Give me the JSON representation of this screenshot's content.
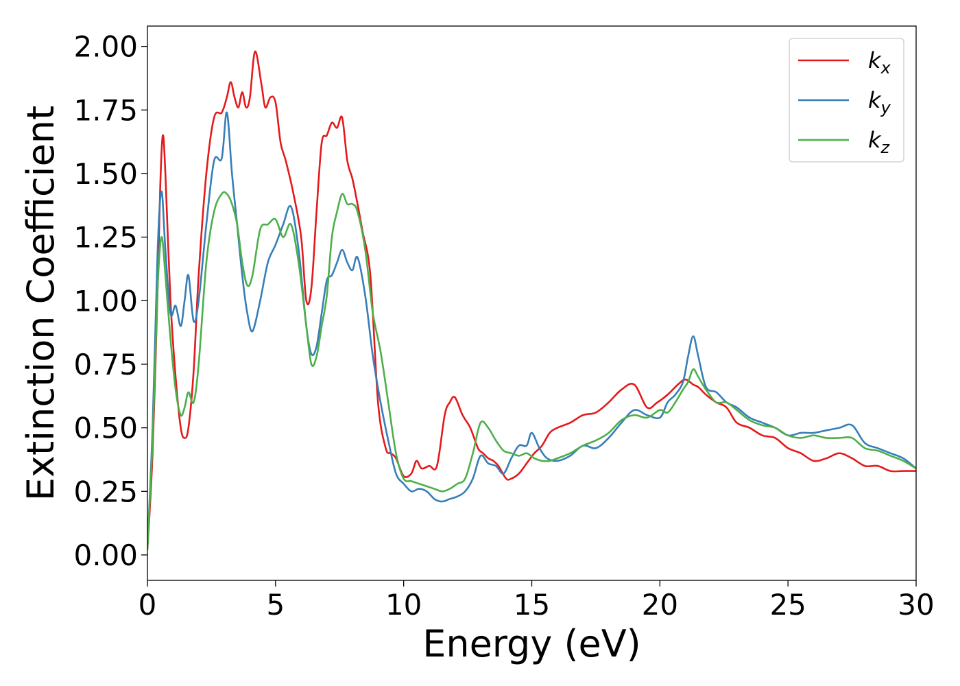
{
  "chart_data": {
    "type": "line",
    "xlabel": "Energy (eV)",
    "ylabel": "Extinction Coefficient",
    "xlim": [
      0,
      30
    ],
    "ylim": [
      -0.1,
      2.08
    ],
    "xticks": [
      "0",
      "5",
      "10",
      "15",
      "20",
      "25",
      "30"
    ],
    "yticks": [
      "0.00",
      "0.25",
      "0.50",
      "0.75",
      "1.00",
      "1.25",
      "1.50",
      "1.75",
      "2.00"
    ],
    "grid": false,
    "legend_position": "top-right",
    "series": [
      {
        "name": "k",
        "subscript": "x",
        "color": "#e41a1c",
        "x": [
          0,
          0.2,
          0.4,
          0.5,
          0.6,
          0.7,
          0.9,
          1.1,
          1.3,
          1.45,
          1.6,
          1.8,
          2.0,
          2.3,
          2.6,
          2.9,
          3.1,
          3.25,
          3.4,
          3.55,
          3.7,
          3.85,
          4.0,
          4.2,
          4.45,
          4.6,
          4.8,
          5.0,
          5.2,
          5.4,
          5.7,
          6.0,
          6.2,
          6.4,
          6.6,
          6.8,
          7.0,
          7.2,
          7.4,
          7.6,
          7.8,
          8.0,
          8.2,
          8.4,
          8.7,
          9.0,
          9.3,
          9.5,
          9.7,
          10.0,
          10.3,
          10.5,
          10.7,
          11.0,
          11.3,
          11.6,
          11.8,
          12.0,
          12.3,
          12.6,
          12.9,
          13.1,
          13.3,
          13.5,
          13.7,
          14.0,
          14.2,
          14.5,
          14.8,
          15.1,
          15.4,
          15.7,
          16.0,
          16.5,
          17.0,
          17.5,
          18.0,
          18.5,
          19.0,
          19.5,
          19.9,
          20.3,
          20.7,
          21.0,
          21.3,
          21.5,
          21.8,
          22.2,
          22.6,
          23.0,
          23.5,
          24.0,
          24.5,
          25.0,
          25.5,
          26.0,
          26.5,
          27.0,
          27.5,
          28.0,
          28.5,
          29.0,
          29.5,
          30.0
        ],
        "values": [
          0.02,
          0.4,
          1.05,
          1.45,
          1.65,
          1.5,
          1.0,
          0.7,
          0.5,
          0.46,
          0.5,
          0.72,
          1.1,
          1.5,
          1.72,
          1.74,
          1.8,
          1.86,
          1.8,
          1.76,
          1.82,
          1.76,
          1.8,
          1.98,
          1.85,
          1.76,
          1.8,
          1.78,
          1.62,
          1.55,
          1.42,
          1.25,
          1.0,
          1.05,
          1.35,
          1.62,
          1.65,
          1.7,
          1.68,
          1.72,
          1.55,
          1.48,
          1.38,
          1.27,
          1.1,
          0.6,
          0.42,
          0.4,
          0.38,
          0.31,
          0.32,
          0.37,
          0.34,
          0.35,
          0.35,
          0.55,
          0.6,
          0.62,
          0.55,
          0.5,
          0.42,
          0.4,
          0.38,
          0.37,
          0.35,
          0.3,
          0.3,
          0.32,
          0.36,
          0.4,
          0.43,
          0.48,
          0.5,
          0.52,
          0.55,
          0.56,
          0.6,
          0.65,
          0.67,
          0.58,
          0.6,
          0.63,
          0.67,
          0.69,
          0.67,
          0.66,
          0.63,
          0.6,
          0.58,
          0.52,
          0.5,
          0.47,
          0.46,
          0.42,
          0.4,
          0.37,
          0.38,
          0.4,
          0.38,
          0.35,
          0.35,
          0.33,
          0.33,
          0.33
        ]
      },
      {
        "name": "k",
        "subscript": "y",
        "color": "#377eb8",
        "x": [
          0,
          0.2,
          0.4,
          0.55,
          0.7,
          0.9,
          1.1,
          1.3,
          1.45,
          1.6,
          1.8,
          2.0,
          2.3,
          2.6,
          2.9,
          3.1,
          3.3,
          3.5,
          3.7,
          3.9,
          4.1,
          4.4,
          4.7,
          5.0,
          5.3,
          5.6,
          5.9,
          6.2,
          6.4,
          6.6,
          6.8,
          7.0,
          7.2,
          7.4,
          7.6,
          7.8,
          8.0,
          8.2,
          8.5,
          8.8,
          9.1,
          9.4,
          9.7,
          10.0,
          10.3,
          10.6,
          10.9,
          11.2,
          11.5,
          11.8,
          12.1,
          12.4,
          12.7,
          13.0,
          13.3,
          13.6,
          13.9,
          14.2,
          14.5,
          14.8,
          15.0,
          15.3,
          15.6,
          16.0,
          16.5,
          17.0,
          17.5,
          18.0,
          18.5,
          19.0,
          19.5,
          20.0,
          20.3,
          20.6,
          20.9,
          21.1,
          21.3,
          21.5,
          21.8,
          22.2,
          22.6,
          23.0,
          23.5,
          24.0,
          24.5,
          25.0,
          25.5,
          26.0,
          26.5,
          27.0,
          27.5,
          28.0,
          28.5,
          29.0,
          29.5,
          30.0
        ],
        "values": [
          0.03,
          0.5,
          1.2,
          1.43,
          1.2,
          0.95,
          0.98,
          0.9,
          1.0,
          1.1,
          0.92,
          1.0,
          1.3,
          1.55,
          1.56,
          1.74,
          1.5,
          1.3,
          1.1,
          0.95,
          0.88,
          1.0,
          1.15,
          1.22,
          1.3,
          1.37,
          1.2,
          0.9,
          0.79,
          0.82,
          0.95,
          1.08,
          1.1,
          1.15,
          1.2,
          1.15,
          1.12,
          1.17,
          1.02,
          0.78,
          0.6,
          0.45,
          0.32,
          0.28,
          0.25,
          0.26,
          0.25,
          0.22,
          0.21,
          0.22,
          0.23,
          0.25,
          0.3,
          0.39,
          0.36,
          0.35,
          0.32,
          0.38,
          0.43,
          0.43,
          0.48,
          0.42,
          0.38,
          0.37,
          0.39,
          0.43,
          0.42,
          0.46,
          0.52,
          0.57,
          0.55,
          0.54,
          0.6,
          0.63,
          0.68,
          0.78,
          0.86,
          0.78,
          0.66,
          0.64,
          0.6,
          0.58,
          0.54,
          0.52,
          0.5,
          0.47,
          0.48,
          0.48,
          0.49,
          0.5,
          0.51,
          0.44,
          0.42,
          0.4,
          0.38,
          0.34
        ]
      },
      {
        "name": "k",
        "subscript": "z",
        "color": "#4daf4a",
        "x": [
          0,
          0.2,
          0.4,
          0.55,
          0.7,
          0.9,
          1.1,
          1.3,
          1.45,
          1.6,
          1.8,
          2.0,
          2.3,
          2.6,
          2.9,
          3.1,
          3.3,
          3.5,
          3.7,
          3.9,
          4.1,
          4.4,
          4.7,
          5.0,
          5.3,
          5.6,
          5.9,
          6.2,
          6.4,
          6.6,
          6.8,
          7.0,
          7.2,
          7.4,
          7.6,
          7.8,
          8.0,
          8.2,
          8.5,
          8.8,
          9.1,
          9.4,
          9.7,
          10.0,
          10.3,
          10.6,
          10.9,
          11.2,
          11.5,
          11.8,
          12.1,
          12.4,
          12.7,
          13.0,
          13.3,
          13.6,
          13.9,
          14.2,
          14.5,
          14.8,
          15.1,
          15.4,
          15.7,
          16.0,
          16.5,
          17.0,
          17.5,
          18.0,
          18.5,
          19.0,
          19.5,
          20.0,
          20.3,
          20.6,
          20.9,
          21.1,
          21.3,
          21.5,
          21.8,
          22.2,
          22.6,
          23.0,
          23.5,
          24.0,
          24.5,
          25.0,
          25.5,
          26.0,
          26.5,
          27.0,
          27.5,
          28.0,
          28.5,
          29.0,
          29.5,
          30.0
        ],
        "values": [
          0.02,
          0.45,
          1.05,
          1.25,
          1.1,
          0.85,
          0.65,
          0.55,
          0.58,
          0.64,
          0.6,
          0.75,
          1.15,
          1.35,
          1.42,
          1.42,
          1.38,
          1.3,
          1.15,
          1.06,
          1.1,
          1.28,
          1.3,
          1.32,
          1.25,
          1.3,
          1.15,
          0.9,
          0.75,
          0.78,
          0.9,
          1.02,
          1.25,
          1.35,
          1.42,
          1.38,
          1.38,
          1.35,
          1.2,
          0.95,
          0.8,
          0.6,
          0.4,
          0.3,
          0.29,
          0.28,
          0.27,
          0.26,
          0.25,
          0.26,
          0.28,
          0.3,
          0.4,
          0.52,
          0.5,
          0.45,
          0.41,
          0.4,
          0.39,
          0.4,
          0.38,
          0.37,
          0.37,
          0.38,
          0.4,
          0.43,
          0.45,
          0.48,
          0.53,
          0.55,
          0.54,
          0.57,
          0.56,
          0.6,
          0.65,
          0.68,
          0.73,
          0.7,
          0.65,
          0.6,
          0.6,
          0.57,
          0.53,
          0.51,
          0.5,
          0.47,
          0.46,
          0.47,
          0.46,
          0.46,
          0.46,
          0.42,
          0.41,
          0.39,
          0.37,
          0.34
        ]
      }
    ]
  }
}
